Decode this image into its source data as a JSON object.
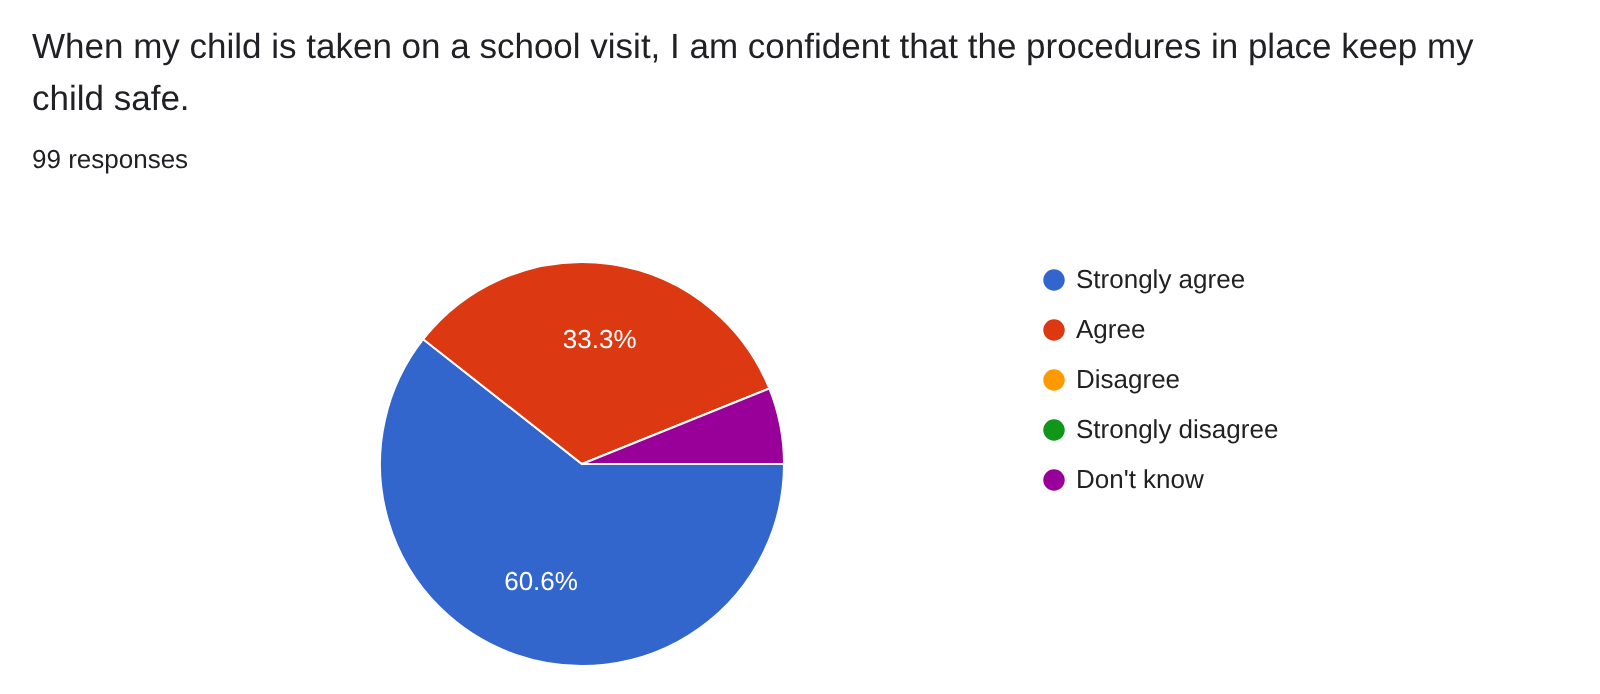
{
  "chart_data": {
    "type": "pie",
    "title": "When my child is taken on a school visit, I am confident that the procedures in place keep my child safe.",
    "subtitle": "99 responses",
    "categories": [
      "Strongly agree",
      "Agree",
      "Disagree",
      "Strongly disagree",
      "Don't know"
    ],
    "values": [
      60.6,
      33.3,
      0,
      0,
      6.1
    ],
    "colors": [
      "#3366cc",
      "#dc3912",
      "#ff9900",
      "#109618",
      "#990099"
    ],
    "value_labels": [
      "60.6%",
      "33.3%",
      null,
      null,
      null
    ],
    "legend": "right"
  }
}
